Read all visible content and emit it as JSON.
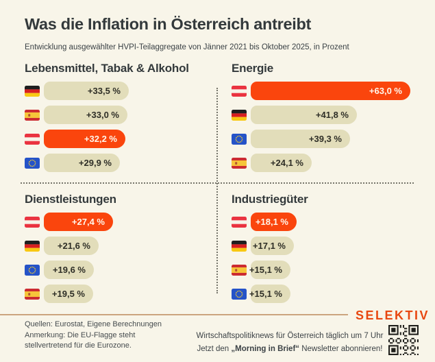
{
  "title": "Was die Inflation in Österreich antreibt",
  "subtitle": "Entwicklung ausgewählter HVPI-Teilaggregate von Jänner 2021 bis Oktober 2025, in Prozent",
  "colors": {
    "background": "#F8F5E9",
    "bar_default": "#E2DDBA",
    "bar_highlight": "#FA450D",
    "text_dark": "#33393B",
    "logo_orange": "#E84710",
    "footer_rule": "#CBA47E"
  },
  "chart_data": {
    "type": "bar",
    "orientation": "horizontal",
    "unit": "percent",
    "period": "Jänner 2021 – Oktober 2025",
    "max_value": 63.0,
    "highlight_country": "austria",
    "groups": [
      {
        "title": "Lebensmittel, Tabak & Alkohol",
        "bars": [
          {
            "flag": "germany",
            "label": "+33,5 %",
            "value": 33.5,
            "highlight": false
          },
          {
            "flag": "spain",
            "label": "+33,0 %",
            "value": 33.0,
            "highlight": false
          },
          {
            "flag": "austria",
            "label": "+32,2 %",
            "value": 32.2,
            "highlight": true
          },
          {
            "flag": "eu",
            "label": "+29,9 %",
            "value": 29.9,
            "highlight": false
          }
        ]
      },
      {
        "title": "Energie",
        "bars": [
          {
            "flag": "austria",
            "label": "+63,0 %",
            "value": 63.0,
            "highlight": true
          },
          {
            "flag": "germany",
            "label": "+41,8 %",
            "value": 41.8,
            "highlight": false
          },
          {
            "flag": "eu",
            "label": "+39,3 %",
            "value": 39.3,
            "highlight": false
          },
          {
            "flag": "spain",
            "label": "+24,1 %",
            "value": 24.1,
            "highlight": false
          }
        ]
      },
      {
        "title": "Dienstleistungen",
        "bars": [
          {
            "flag": "austria",
            "label": "+27,4 %",
            "value": 27.4,
            "highlight": true
          },
          {
            "flag": "germany",
            "label": "+21,6 %",
            "value": 21.6,
            "highlight": false
          },
          {
            "flag": "eu",
            "label": "+19,6 %",
            "value": 19.6,
            "highlight": false
          },
          {
            "flag": "spain",
            "label": "+19,5 %",
            "value": 19.5,
            "highlight": false
          }
        ]
      },
      {
        "title": "Industriegüter",
        "bars": [
          {
            "flag": "austria",
            "label": "+18,1 %",
            "value": 18.1,
            "highlight": true
          },
          {
            "flag": "germany",
            "label": "+17,1 %",
            "value": 17.1,
            "highlight": false
          },
          {
            "flag": "spain",
            "label": "+15,1 %",
            "value": 15.1,
            "highlight": false
          },
          {
            "flag": "eu",
            "label": "+15,1 %",
            "value": 15.1,
            "highlight": false
          }
        ]
      }
    ]
  },
  "footer": {
    "source_line1": "Quellen: Eurostat, Eigene Berechnungen",
    "source_line2": "Anmerkung: Die EU-Flagge steht",
    "source_line3": "stellvertretend für die Eurozone.",
    "promo_line1": "Wirtschaftspolitiknews für Österreich täglich um 7 Uhr",
    "promo_line2_prefix": "Jetzt den ",
    "promo_line2_bold": "„Morning in Brief“",
    "promo_line2_suffix": " Newsletter abonnieren!",
    "logo": "SELEKTIV",
    "qr_icon": "qr-code-icon"
  }
}
